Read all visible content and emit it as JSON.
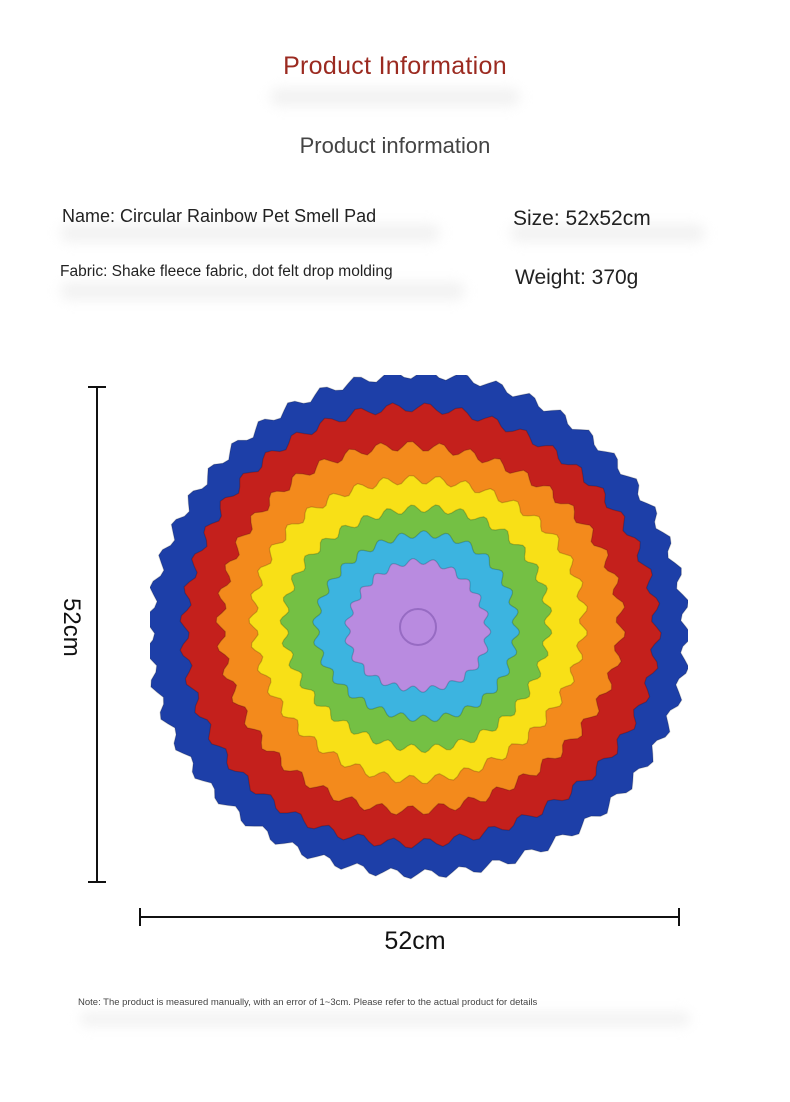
{
  "header": {
    "title": "Product Information",
    "subtitle": "Product information"
  },
  "specs": {
    "name": "Name: Circular Rainbow Pet Smell Pad",
    "size": "Size: 52x52cm",
    "fabric": "Fabric: Shake fleece fabric, dot felt drop molding",
    "weight": "Weight: 370g"
  },
  "product_image": {
    "description_colors": [
      "#1d3fa8",
      "#c4201c",
      "#f38a1c",
      "#f8e017",
      "#74c044",
      "#3cb4e0",
      "#b98be0"
    ]
  },
  "dimensions": {
    "height_label": "52cm",
    "width_label": "52cm"
  },
  "footer": {
    "note": "Note: The product is measured manually, with an error of 1~3cm. Please refer to the actual product for details"
  }
}
